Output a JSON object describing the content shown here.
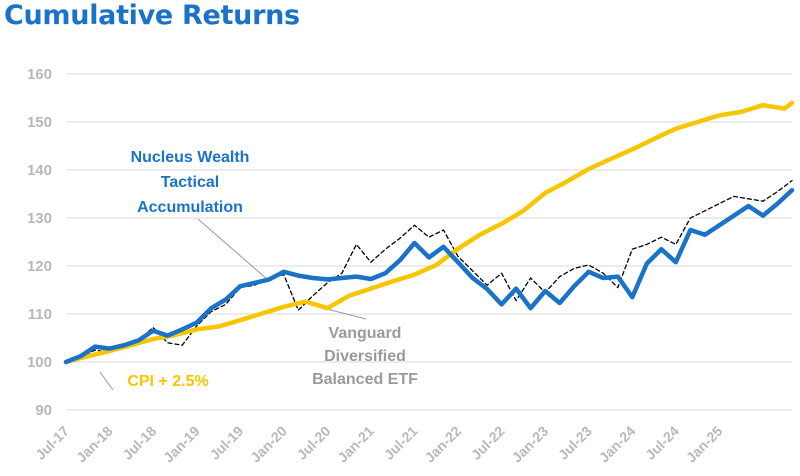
{
  "title": "Cumulative Returns",
  "chart_data": {
    "type": "line",
    "title": "Cumulative Returns",
    "xlabel": "",
    "ylabel": "",
    "ylim": [
      90,
      160
    ],
    "yticks": [
      90,
      100,
      110,
      120,
      130,
      140,
      150,
      160
    ],
    "xlim": [
      "2017-07",
      "2025-11"
    ],
    "xticks": [
      "Jul-17",
      "Jan-18",
      "Jul-18",
      "Jan-19",
      "Jul-19",
      "Jan-20",
      "Jul-20",
      "Jan-21",
      "Jul-21",
      "Jan-22",
      "Jul-22",
      "Jan-23",
      "Jul-23",
      "Jan-24",
      "Jul-24",
      "Jan-25"
    ],
    "grid": "horizontal",
    "legend": "none",
    "annotations": [
      {
        "series": "Nucleus Wealth Tactical Accumulation",
        "lines": [
          "Nucleus Wealth",
          "Tactical",
          "Accumulation"
        ],
        "color": "#1a73c9"
      },
      {
        "series": "Vanguard Diversified Balanced ETF",
        "lines": [
          "Vanguard",
          "Diversified",
          "Balanced ETF"
        ],
        "color": "#9a9a9a"
      },
      {
        "series": "CPI + 2.5%",
        "lines": [
          "CPI + 2.5%"
        ],
        "color": "#f7c600"
      }
    ],
    "series": [
      {
        "name": "CPI + 2.5%",
        "color": "#f7c600",
        "style": "solid",
        "x": [
          "2017-07",
          "2017-10",
          "2018-01",
          "2018-04",
          "2018-07",
          "2018-10",
          "2019-01",
          "2019-04",
          "2019-07",
          "2019-10",
          "2020-01",
          "2020-04",
          "2020-07",
          "2020-10",
          "2021-01",
          "2021-04",
          "2021-07",
          "2021-10",
          "2022-01",
          "2022-04",
          "2022-07",
          "2022-10",
          "2023-01",
          "2023-04",
          "2023-07",
          "2023-10",
          "2024-01",
          "2024-04",
          "2024-07",
          "2024-10",
          "2025-01",
          "2025-04",
          "2025-07",
          "2025-10",
          "2025-11"
        ],
        "y": [
          100,
          101.2,
          102.3,
          103.5,
          104.8,
          105.6,
          106.8,
          107.4,
          108.7,
          110.1,
          111.5,
          112.6,
          111.2,
          113.8,
          115.3,
          116.8,
          118.2,
          120.2,
          123.6,
          126.5,
          128.8,
          131.5,
          135.2,
          137.6,
          140.2,
          142.3,
          144.3,
          146.5,
          148.6,
          150.0,
          151.4,
          152.1,
          153.5,
          152.8,
          154.0
        ]
      },
      {
        "name": "Nucleus Wealth Tactical Accumulation",
        "color": "#1a73c9",
        "style": "solid",
        "x": [
          "2017-07",
          "2017-09",
          "2017-11",
          "2018-01",
          "2018-03",
          "2018-05",
          "2018-07",
          "2018-09",
          "2018-11",
          "2019-01",
          "2019-03",
          "2019-05",
          "2019-07",
          "2019-09",
          "2019-11",
          "2020-01",
          "2020-03",
          "2020-05",
          "2020-07",
          "2020-09",
          "2020-11",
          "2021-01",
          "2021-03",
          "2021-05",
          "2021-07",
          "2021-09",
          "2021-11",
          "2022-01",
          "2022-03",
          "2022-05",
          "2022-07",
          "2022-09",
          "2022-11",
          "2023-01",
          "2023-03",
          "2023-05",
          "2023-07",
          "2023-09",
          "2023-11",
          "2024-01",
          "2024-03",
          "2024-05",
          "2024-07",
          "2024-09",
          "2024-11",
          "2025-01",
          "2025-03",
          "2025-05",
          "2025-07",
          "2025-09",
          "2025-11"
        ],
        "y": [
          100,
          101.2,
          103.2,
          102.8,
          103.5,
          104.5,
          106.5,
          105.5,
          106.8,
          108.2,
          111.2,
          113.0,
          115.8,
          116.5,
          117.2,
          118.8,
          118.0,
          117.5,
          117.2,
          117.5,
          117.8,
          117.3,
          118.5,
          121.2,
          124.8,
          121.8,
          124.0,
          120.8,
          117.5,
          115.2,
          112.0,
          115.3,
          111.2,
          114.8,
          112.3,
          115.8,
          118.8,
          117.5,
          117.8,
          113.5,
          120.5,
          123.5,
          120.8,
          127.5,
          126.5,
          128.5,
          130.5,
          132.5,
          130.5,
          133.0,
          135.8
        ]
      },
      {
        "name": "Vanguard Diversified Balanced ETF",
        "color": "#000000",
        "style": "dashed",
        "x": [
          "2017-07",
          "2017-09",
          "2017-11",
          "2018-01",
          "2018-03",
          "2018-05",
          "2018-07",
          "2018-09",
          "2018-11",
          "2019-01",
          "2019-03",
          "2019-05",
          "2019-07",
          "2019-09",
          "2019-11",
          "2020-01",
          "2020-03",
          "2020-05",
          "2020-07",
          "2020-09",
          "2020-11",
          "2021-01",
          "2021-03",
          "2021-05",
          "2021-07",
          "2021-09",
          "2021-11",
          "2022-01",
          "2022-03",
          "2022-05",
          "2022-07",
          "2022-09",
          "2022-11",
          "2023-01",
          "2023-03",
          "2023-05",
          "2023-07",
          "2023-09",
          "2023-11",
          "2024-01",
          "2024-03",
          "2024-05",
          "2024-07",
          "2024-09",
          "2024-11",
          "2025-01",
          "2025-03",
          "2025-05",
          "2025-07",
          "2025-09",
          "2025-11"
        ],
        "y": [
          100,
          101.0,
          102.5,
          102.0,
          103.8,
          104.5,
          107.2,
          104.0,
          103.5,
          107.5,
          110.5,
          112.0,
          115.5,
          116.0,
          117.5,
          118.2,
          110.8,
          113.8,
          116.5,
          118.5,
          124.5,
          120.8,
          123.5,
          125.8,
          128.5,
          126.0,
          127.5,
          122.0,
          119.0,
          116.0,
          118.5,
          112.8,
          117.5,
          114.5,
          117.8,
          119.5,
          120.2,
          118.5,
          115.5,
          123.5,
          124.5,
          126.0,
          124.5,
          130.0,
          131.5,
          133.0,
          134.5,
          134.0,
          133.5,
          135.5,
          137.8
        ]
      }
    ]
  }
}
